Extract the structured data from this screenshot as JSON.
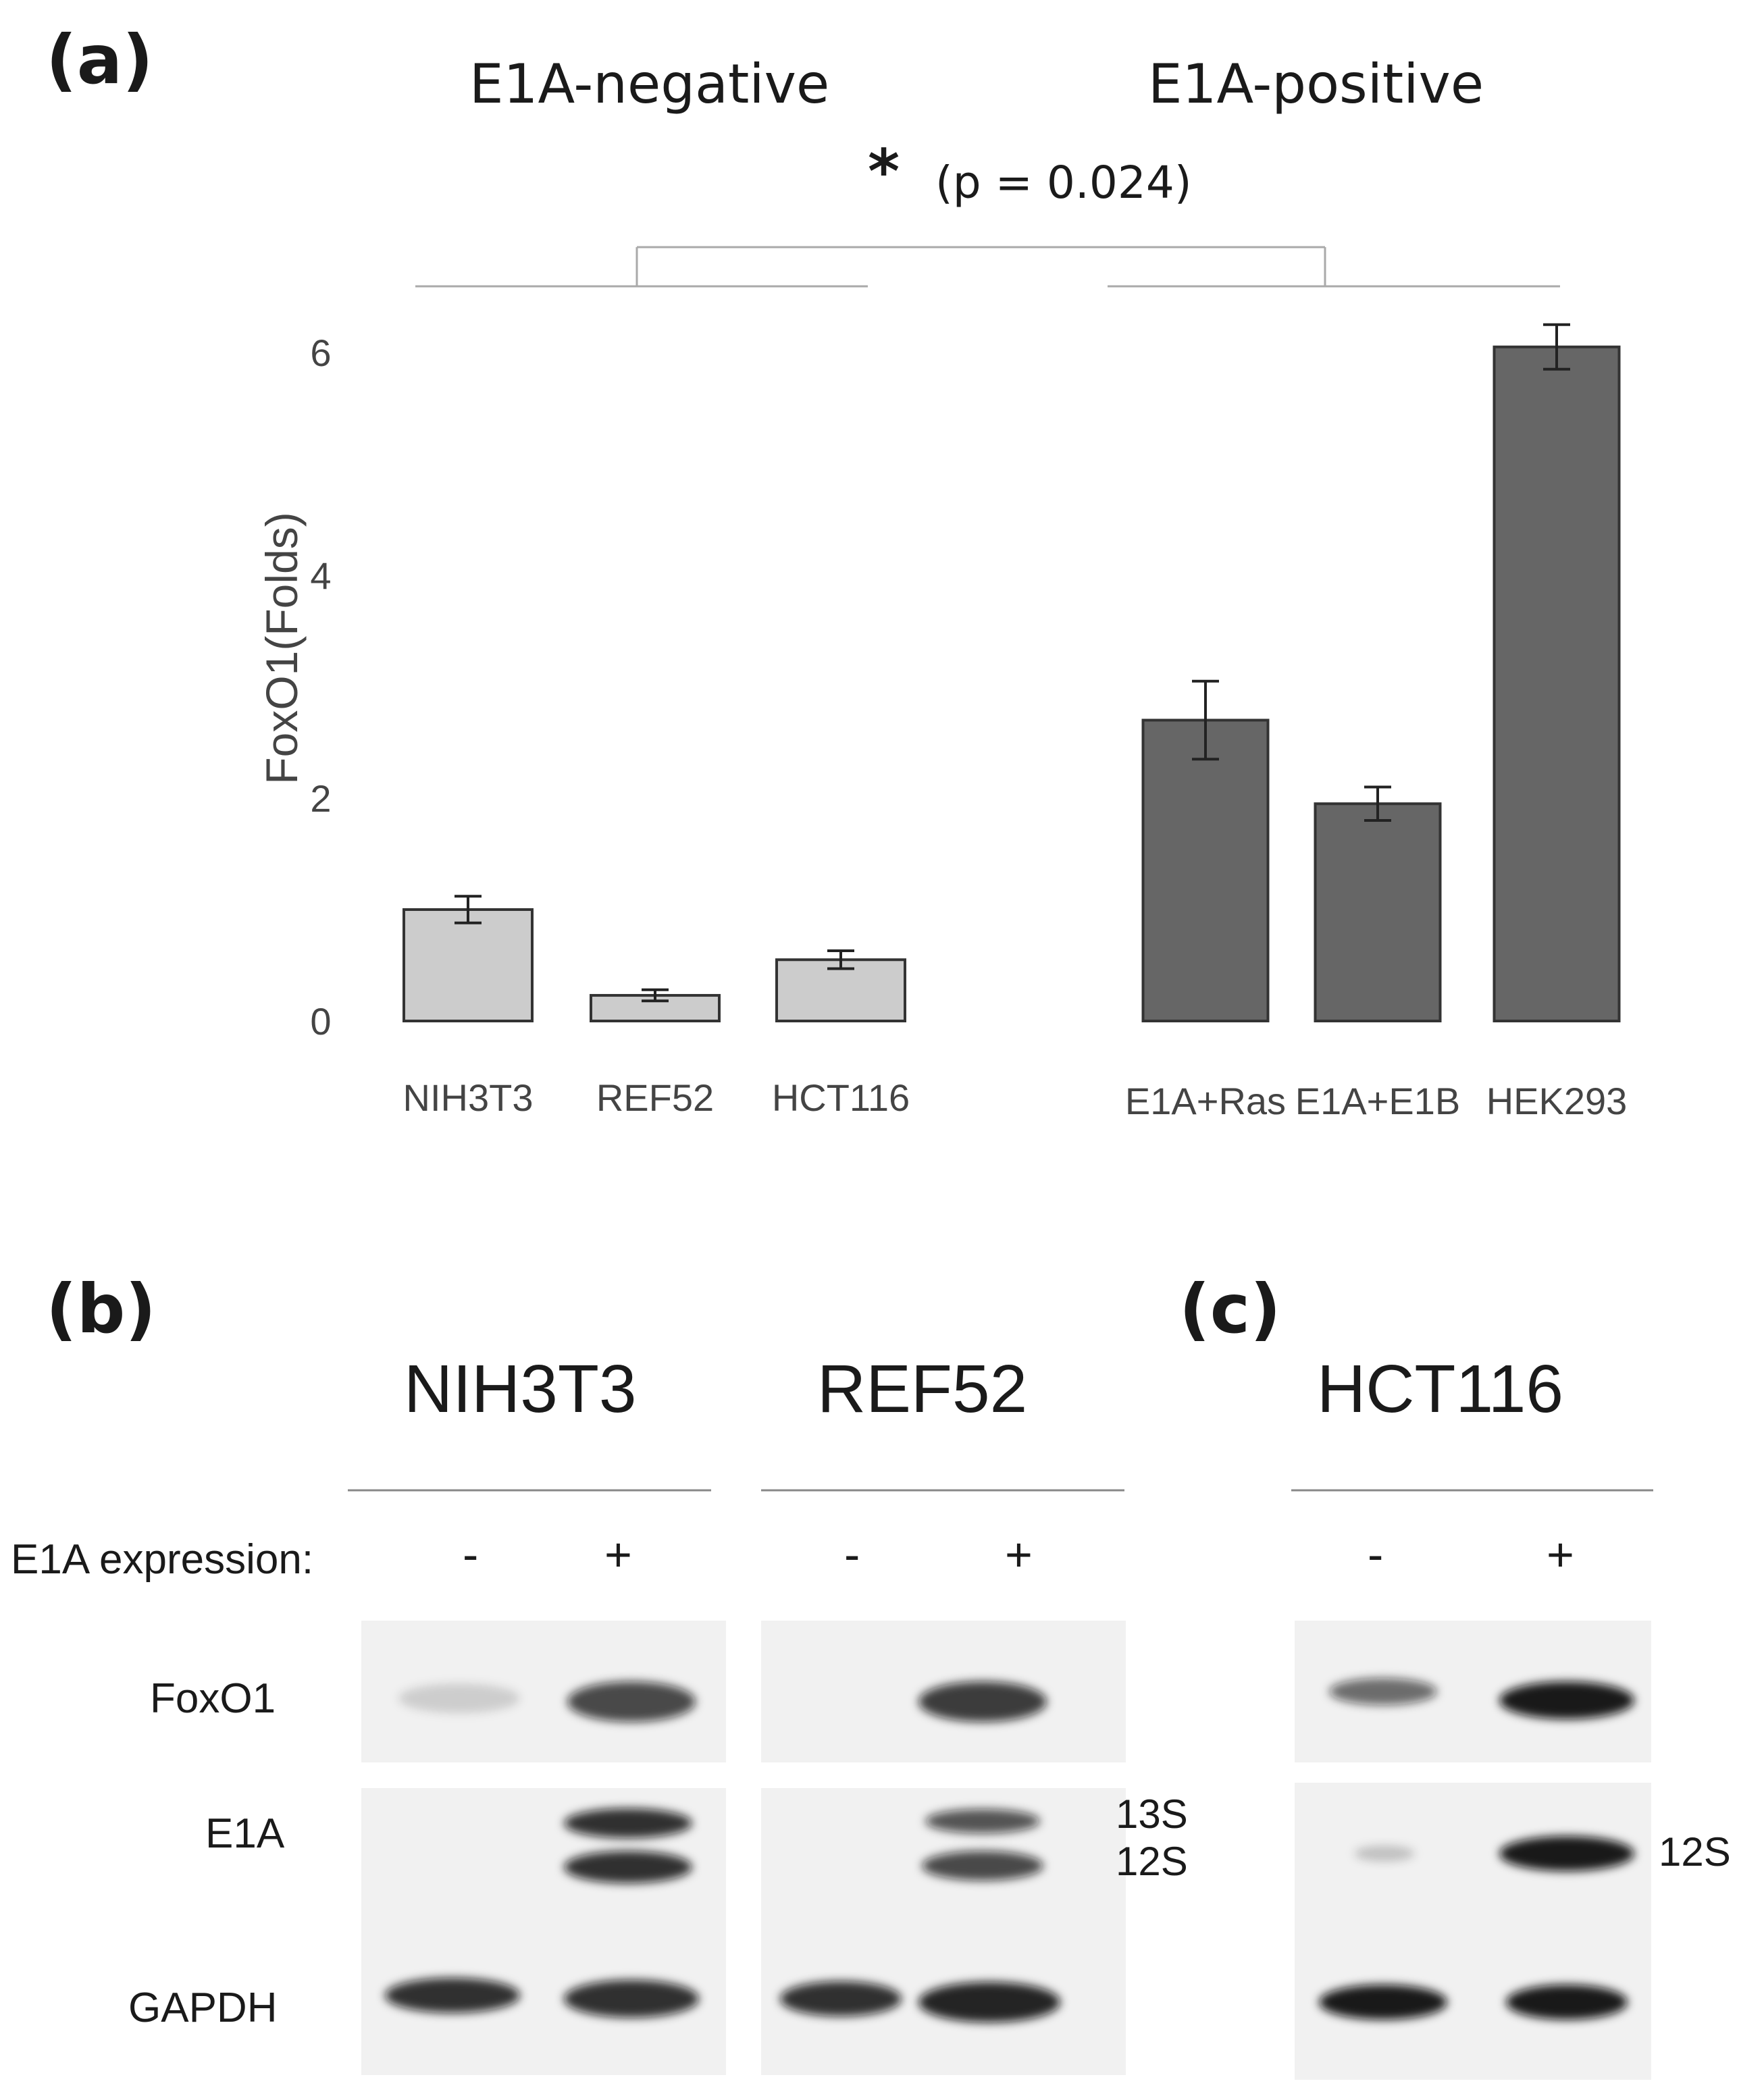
{
  "panel_a": {
    "label": "(a)",
    "group_left": "E1A-negative",
    "group_right": "E1A-positive",
    "significance_star": "*",
    "significance_p": "(p = 0.024)"
  },
  "chart_data": {
    "type": "bar",
    "ylabel": "FoxO1(Folds)",
    "ylim": [
      0,
      6.5
    ],
    "yticks": [
      0,
      2,
      4,
      6
    ],
    "categories": [
      "NIH3T3",
      "REF52",
      "HCT116",
      "E1A+Ras",
      "E1A+E1B",
      "HEK293"
    ],
    "values": [
      1.0,
      0.23,
      0.55,
      2.7,
      1.95,
      6.05
    ],
    "errors": [
      0.12,
      0.05,
      0.08,
      0.35,
      0.15,
      0.2
    ],
    "colors": [
      "#cccccc",
      "#cccccc",
      "#cccccc",
      "#666666",
      "#666666",
      "#666666"
    ]
  },
  "panel_b": {
    "label": "(b)",
    "cell_lines": [
      "NIH3T3",
      "REF52"
    ],
    "expression_label": "E1A expression:",
    "signs": [
      "-",
      "+",
      "-",
      "+"
    ],
    "rows": [
      "FoxO1",
      "E1A",
      "GAPDH"
    ],
    "band_labels": [
      "13S",
      "12S"
    ]
  },
  "panel_c": {
    "label": "(c)",
    "cell_line": "HCT116",
    "signs": [
      "-",
      "+"
    ],
    "band_label": "12S"
  }
}
